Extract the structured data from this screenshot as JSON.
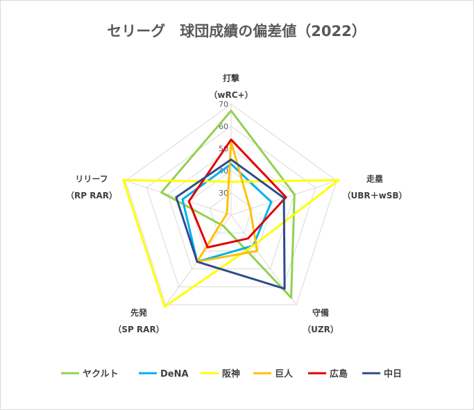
{
  "chart_data": {
    "type": "radar",
    "title": "セリーグ　球団成績の偏差値（2022）",
    "axes": [
      {
        "label": "打撃",
        "sublabel": "（wRC+）"
      },
      {
        "label": "走塁",
        "sublabel": "（UBR＋wSB）"
      },
      {
        "label": "守備",
        "sublabel": "（UZR）"
      },
      {
        "label": "先発",
        "sublabel": "（SP RAR）"
      },
      {
        "label": "リリーフ",
        "sublabel": "（RP RAR）"
      }
    ],
    "ticks": [
      30,
      40,
      50,
      60,
      70
    ],
    "range": [
      20,
      70
    ],
    "series": [
      {
        "name": "ヤクルト",
        "color": "#92d050",
        "values": [
          67,
          50,
          66,
          26,
          53
        ]
      },
      {
        "name": "DeNA",
        "color": "#00b0f0",
        "values": [
          43,
          39,
          37,
          46,
          43
        ]
      },
      {
        "name": "阪神",
        "color": "#ffff00",
        "values": [
          35,
          71,
          37,
          71,
          71
        ]
      },
      {
        "name": "巨人",
        "color": "#ffc000",
        "values": [
          53,
          29,
          40,
          46,
          22
        ]
      },
      {
        "name": "広島",
        "color": "#e00000",
        "values": [
          54,
          46,
          33,
          38,
          40
        ]
      },
      {
        "name": "中日",
        "color": "#2f4a8c",
        "values": [
          45,
          45,
          61,
          46,
          46
        ]
      }
    ]
  }
}
